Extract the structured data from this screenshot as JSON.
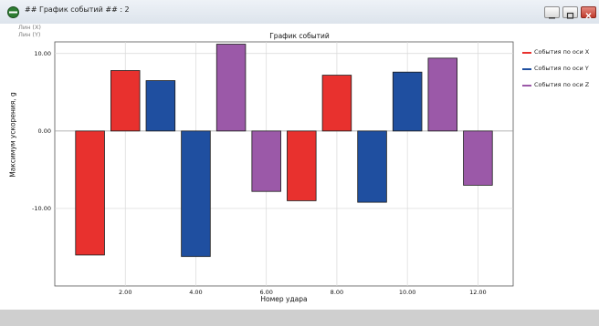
{
  "window": {
    "title": "## График событий ## : 2",
    "icon": "app-icon"
  },
  "labels": {
    "lin_x": "Лин (X)",
    "lin_y": "Лин (Y)"
  },
  "colors": {
    "series_x": "#e8312e",
    "series_y": "#1f4fa0",
    "series_z": "#9b59a8",
    "grid": "#d8d8d8",
    "zero_line": "#9a9a9a"
  },
  "chart_data": {
    "type": "bar",
    "title": "График событий",
    "xlabel": "Номер удара",
    "ylabel": "Максимум ускорения, g",
    "x_ticks": [
      "2.00",
      "4.00",
      "6.00",
      "8.00",
      "10.00",
      "12.00"
    ],
    "x_tick_values": [
      2,
      4,
      6,
      8,
      10,
      12
    ],
    "y_ticks": [
      "10.00",
      "0.00",
      "-10.00"
    ],
    "y_tick_values": [
      10,
      0,
      -10
    ],
    "xlim": [
      0,
      13
    ],
    "ylim": [
      -20,
      11.5
    ],
    "grid": true,
    "legend_position": "right",
    "series": [
      {
        "name": "События по оси X",
        "color": "#e8312e",
        "x": [
          1,
          2,
          7,
          8
        ],
        "values": [
          -16,
          7.8,
          -9,
          7.2
        ]
      },
      {
        "name": "События по оси Y",
        "color": "#1f4fa0",
        "x": [
          3,
          4,
          9,
          10
        ],
        "values": [
          6.5,
          -16.2,
          -9.2,
          7.6
        ]
      },
      {
        "name": "События по оси Z",
        "color": "#9b59a8",
        "x": [
          5,
          6,
          11,
          12
        ],
        "values": [
          11.2,
          -7.8,
          9.4,
          -7
        ]
      }
    ]
  }
}
